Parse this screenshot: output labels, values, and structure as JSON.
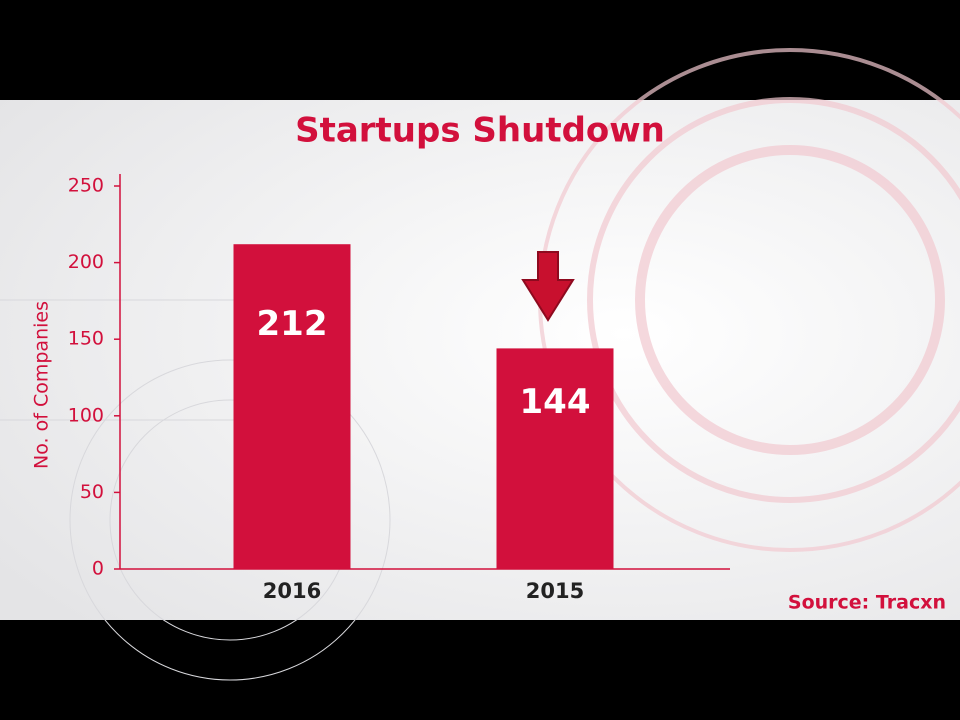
{
  "chart_data": {
    "type": "bar",
    "title": "Startups Shutdown",
    "y_label": "No. of Companies",
    "source": "Source: Tracxn",
    "categories": [
      "2016",
      "2015"
    ],
    "values": [
      212,
      144
    ],
    "color": "#d2103c",
    "ylim": [
      0,
      250
    ],
    "yticks": [
      0,
      50,
      100,
      150,
      200,
      250
    ],
    "grid": false
  }
}
